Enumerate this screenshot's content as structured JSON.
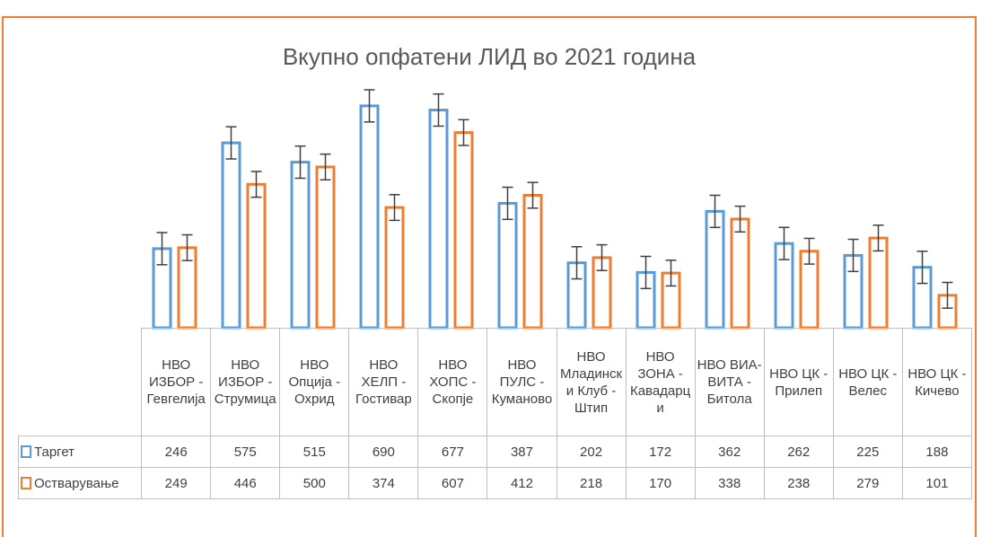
{
  "chart_data": {
    "type": "bar",
    "title": "Вкупно опфатени ЛИД во 2021 година",
    "categories": [
      "НВО ИЗБОР - Гевгелија",
      "НВО ИЗБОР - Струмица",
      "НВО Опција - Охрид",
      "НВО ХЕЛП - Гостивар",
      "НВО ХОПС - Скопје",
      "НВО ПУЛС - Куманово",
      "НВО Младински Клуб - Штип",
      "НВО ЗОНА - Кавадарци",
      "НВО ВИА-ВИТА - Битола",
      "НВО ЦК - Прилеп",
      "НВО ЦК - Велес",
      "НВО ЦК - Кичево"
    ],
    "series": [
      {
        "name": "Таргет",
        "color": "#5b9bd5",
        "values": [
          246,
          575,
          515,
          690,
          677,
          387,
          202,
          172,
          362,
          262,
          225,
          188
        ],
        "errors": [
          50,
          50,
          50,
          50,
          50,
          50,
          50,
          50,
          50,
          50,
          50,
          50
        ]
      },
      {
        "name": "Остварување",
        "color": "#ed7d31",
        "values": [
          249,
          446,
          500,
          374,
          607,
          412,
          218,
          170,
          338,
          238,
          279,
          101
        ],
        "errors": [
          40,
          40,
          40,
          40,
          40,
          40,
          40,
          40,
          40,
          40,
          40,
          40
        ]
      }
    ]
  }
}
